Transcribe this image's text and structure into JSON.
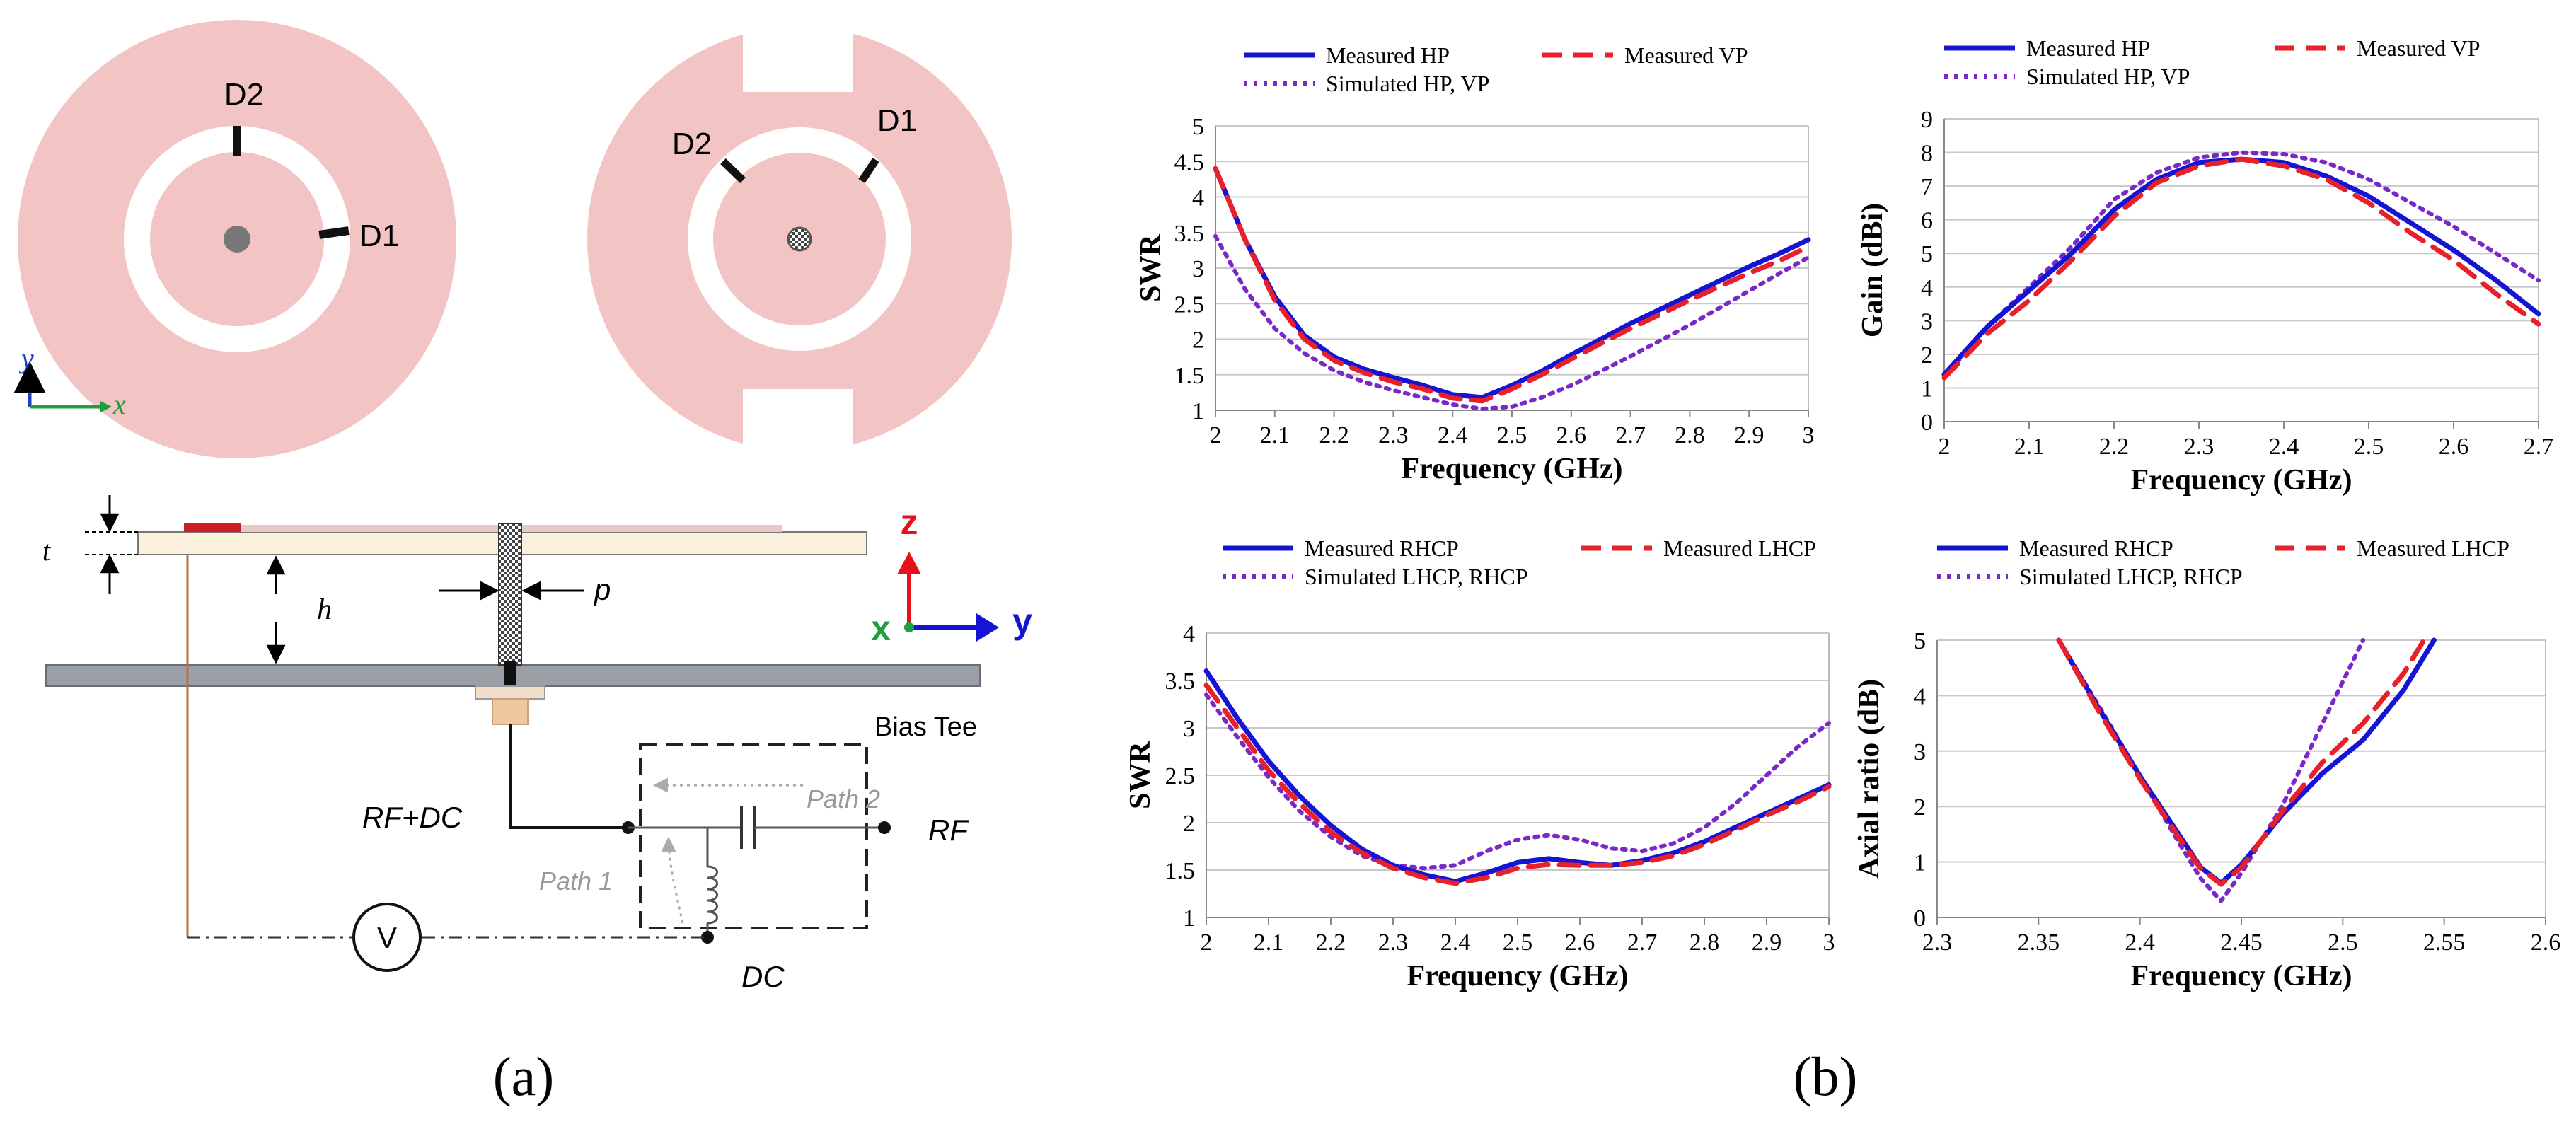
{
  "panel_a": {
    "caption": "(a)",
    "patch_left": {
      "d2": "D2",
      "d1": "D1"
    },
    "patch_right": {
      "d2": "D2",
      "d1": "D1"
    },
    "axes_2d": {
      "y": "y",
      "x": "x"
    },
    "dims": {
      "t": "t",
      "h": "h",
      "p": "p"
    },
    "axes_3d": {
      "z": "z",
      "x": "x",
      "y": "y"
    },
    "circuit": {
      "bias_tee": "Bias Tee",
      "rf_dc": "RF+DC",
      "rf": "RF",
      "dc": "DC",
      "path1": "Path 1",
      "path2": "Path 2",
      "voltmeter": "V"
    }
  },
  "panel_b": {
    "caption": "(b)"
  },
  "colors": {
    "measured_h": "#1414d2",
    "measured_v": "#e8202a",
    "simulated": "#7a28c8",
    "patch": "#f2c4c4"
  },
  "chart_data": [
    {
      "id": "swr_linear",
      "type": "line",
      "xlabel": "Frequency (GHz)",
      "ylabel": "SWR",
      "xlim": [
        2,
        3
      ],
      "ylim": [
        1,
        5
      ],
      "xticks": [
        "2",
        "2.1",
        "2.2",
        "2.3",
        "2.4",
        "2.5",
        "2.6",
        "2.7",
        "2.8",
        "2.9",
        "3"
      ],
      "yticks": [
        "1",
        "1.5",
        "2",
        "2.5",
        "3",
        "3.5",
        "4",
        "4.5",
        "5"
      ],
      "legend": [
        "Measured HP",
        "Measured VP",
        "Simulated HP, VP"
      ],
      "series": [
        {
          "name": "Measured HP",
          "style": "solid",
          "x": [
            2,
            2.05,
            2.1,
            2.15,
            2.2,
            2.25,
            2.3,
            2.35,
            2.4,
            2.45,
            2.5,
            2.55,
            2.6,
            2.65,
            2.7,
            2.75,
            2.8,
            2.85,
            2.9,
            2.95,
            3
          ],
          "y": [
            4.4,
            3.4,
            2.6,
            2.05,
            1.75,
            1.58,
            1.46,
            1.35,
            1.22,
            1.18,
            1.35,
            1.55,
            1.78,
            2.0,
            2.22,
            2.42,
            2.62,
            2.82,
            3.02,
            3.2,
            3.4
          ]
        },
        {
          "name": "Measured VP",
          "style": "dashed",
          "x": [
            2,
            2.05,
            2.1,
            2.15,
            2.2,
            2.25,
            2.3,
            2.35,
            2.4,
            2.45,
            2.5,
            2.55,
            2.6,
            2.65,
            2.7,
            2.75,
            2.8,
            2.85,
            2.9,
            2.95,
            3
          ],
          "y": [
            4.4,
            3.4,
            2.55,
            2.0,
            1.7,
            1.53,
            1.4,
            1.3,
            1.17,
            1.13,
            1.3,
            1.5,
            1.72,
            1.94,
            2.15,
            2.35,
            2.55,
            2.74,
            2.93,
            3.1,
            3.3
          ]
        },
        {
          "name": "Simulated HP, VP",
          "style": "dotted",
          "x": [
            2,
            2.05,
            2.1,
            2.15,
            2.2,
            2.25,
            2.3,
            2.35,
            2.4,
            2.45,
            2.5,
            2.55,
            2.6,
            2.65,
            2.7,
            2.75,
            2.8,
            2.85,
            2.9,
            2.95,
            3
          ],
          "y": [
            3.45,
            2.7,
            2.15,
            1.8,
            1.56,
            1.4,
            1.28,
            1.18,
            1.08,
            1.02,
            1.05,
            1.18,
            1.35,
            1.55,
            1.76,
            1.98,
            2.2,
            2.44,
            2.68,
            2.92,
            3.15
          ]
        }
      ]
    },
    {
      "id": "gain_linear",
      "type": "line",
      "xlabel": "Frequency (GHz)",
      "ylabel": "Gain (dBi)",
      "xlim": [
        2,
        2.7
      ],
      "ylim": [
        0,
        9
      ],
      "xticks": [
        "2",
        "2.1",
        "2.2",
        "2.3",
        "2.4",
        "2.5",
        "2.6",
        "2.7"
      ],
      "yticks": [
        "0",
        "1",
        "2",
        "3",
        "4",
        "5",
        "6",
        "7",
        "8",
        "9"
      ],
      "legend": [
        "Measured HP",
        "Measured VP",
        "Simulated HP, VP"
      ],
      "series": [
        {
          "name": "Measured HP",
          "style": "solid",
          "x": [
            2,
            2.05,
            2.1,
            2.15,
            2.2,
            2.25,
            2.3,
            2.35,
            2.4,
            2.45,
            2.5,
            2.55,
            2.6,
            2.65,
            2.7
          ],
          "y": [
            1.4,
            2.8,
            3.9,
            5.0,
            6.3,
            7.2,
            7.7,
            7.8,
            7.7,
            7.3,
            6.7,
            5.9,
            5.1,
            4.2,
            3.2
          ]
        },
        {
          "name": "Measured VP",
          "style": "dashed",
          "x": [
            2,
            2.05,
            2.1,
            2.15,
            2.2,
            2.25,
            2.3,
            2.35,
            2.4,
            2.45,
            2.5,
            2.55,
            2.6,
            2.65,
            2.7
          ],
          "y": [
            1.3,
            2.6,
            3.6,
            4.8,
            6.1,
            7.1,
            7.6,
            7.8,
            7.6,
            7.2,
            6.5,
            5.6,
            4.8,
            3.8,
            2.9
          ]
        },
        {
          "name": "Simulated HP, VP",
          "style": "dotted",
          "x": [
            2,
            2.05,
            2.1,
            2.15,
            2.2,
            2.25,
            2.3,
            2.35,
            2.4,
            2.45,
            2.5,
            2.55,
            2.6,
            2.65,
            2.7
          ],
          "y": [
            1.3,
            2.8,
            4.0,
            5.2,
            6.6,
            7.4,
            7.85,
            8.0,
            7.95,
            7.7,
            7.2,
            6.5,
            5.8,
            5.0,
            4.2
          ]
        }
      ]
    },
    {
      "id": "swr_circular",
      "type": "line",
      "xlabel": "Frequency (GHz)",
      "ylabel": "SWR",
      "xlim": [
        2,
        3
      ],
      "ylim": [
        1,
        4
      ],
      "xticks": [
        "2",
        "2.1",
        "2.2",
        "2.3",
        "2.4",
        "2.5",
        "2.6",
        "2.7",
        "2.8",
        "2.9",
        "3"
      ],
      "yticks": [
        "1",
        "1.5",
        "2",
        "2.5",
        "3",
        "3.5",
        "4"
      ],
      "legend": [
        "Measured RHCP",
        "Measured LHCP",
        "Simulated LHCP, RHCP"
      ],
      "series": [
        {
          "name": "Measured RHCP",
          "style": "solid",
          "x": [
            2,
            2.05,
            2.1,
            2.15,
            2.2,
            2.25,
            2.3,
            2.35,
            2.4,
            2.45,
            2.5,
            2.55,
            2.6,
            2.65,
            2.7,
            2.75,
            2.8,
            2.85,
            2.9,
            2.95,
            3
          ],
          "y": [
            3.6,
            3.1,
            2.65,
            2.28,
            1.97,
            1.72,
            1.55,
            1.45,
            1.38,
            1.47,
            1.58,
            1.62,
            1.58,
            1.55,
            1.6,
            1.68,
            1.8,
            1.95,
            2.1,
            2.25,
            2.4
          ]
        },
        {
          "name": "Measured LHCP",
          "style": "dashed",
          "x": [
            2,
            2.05,
            2.1,
            2.15,
            2.2,
            2.25,
            2.3,
            2.35,
            2.4,
            2.45,
            2.5,
            2.55,
            2.6,
            2.65,
            2.7,
            2.75,
            2.8,
            2.85,
            2.9,
            2.95,
            3
          ],
          "y": [
            3.45,
            3.0,
            2.55,
            2.2,
            1.9,
            1.68,
            1.52,
            1.42,
            1.36,
            1.42,
            1.52,
            1.56,
            1.55,
            1.55,
            1.58,
            1.65,
            1.77,
            1.92,
            2.08,
            2.22,
            2.38
          ]
        },
        {
          "name": "Simulated LHCP, RHCP",
          "style": "dotted",
          "x": [
            2,
            2.05,
            2.1,
            2.15,
            2.2,
            2.25,
            2.3,
            2.35,
            2.4,
            2.45,
            2.5,
            2.55,
            2.6,
            2.65,
            2.7,
            2.75,
            2.8,
            2.85,
            2.9,
            2.95,
            3
          ],
          "y": [
            3.35,
            2.9,
            2.48,
            2.12,
            1.85,
            1.65,
            1.55,
            1.52,
            1.55,
            1.7,
            1.82,
            1.87,
            1.82,
            1.73,
            1.7,
            1.78,
            1.95,
            2.2,
            2.5,
            2.8,
            3.05
          ]
        }
      ]
    },
    {
      "id": "axial_ratio",
      "type": "line",
      "xlabel": "Frequency (GHz)",
      "ylabel": "Axial ratio (dB)",
      "xlim": [
        2.3,
        2.6
      ],
      "ylim": [
        0,
        5
      ],
      "xticks": [
        "2.3",
        "2.35",
        "2.4",
        "2.45",
        "2.5",
        "2.55",
        "2.6"
      ],
      "yticks": [
        "0",
        "1",
        "2",
        "3",
        "4",
        "5"
      ],
      "legend": [
        "Measured RHCP",
        "Measured LHCP",
        "Simulated LHCP, RHCP"
      ],
      "series": [
        {
          "name": "Measured RHCP",
          "style": "solid",
          "x": [
            2.36,
            2.38,
            2.4,
            2.42,
            2.43,
            2.44,
            2.45,
            2.47,
            2.49,
            2.51,
            2.53,
            2.545
          ],
          "y": [
            5.0,
            3.75,
            2.55,
            1.45,
            0.9,
            0.62,
            0.95,
            1.85,
            2.6,
            3.2,
            4.1,
            5.0
          ]
        },
        {
          "name": "Measured LHCP",
          "style": "dashed",
          "x": [
            2.36,
            2.38,
            2.4,
            2.42,
            2.43,
            2.44,
            2.45,
            2.47,
            2.49,
            2.51,
            2.53,
            2.54
          ],
          "y": [
            5.0,
            3.7,
            2.5,
            1.4,
            0.88,
            0.6,
            0.9,
            1.9,
            2.8,
            3.5,
            4.4,
            5.0
          ]
        },
        {
          "name": "Simulated LHCP, RHCP",
          "style": "dotted",
          "x": [
            2.36,
            2.38,
            2.4,
            2.42,
            2.43,
            2.44,
            2.45,
            2.47,
            2.49,
            2.51
          ],
          "y": [
            5.0,
            3.8,
            2.55,
            1.3,
            0.7,
            0.3,
            0.8,
            2.0,
            3.5,
            5.0
          ]
        }
      ]
    }
  ]
}
